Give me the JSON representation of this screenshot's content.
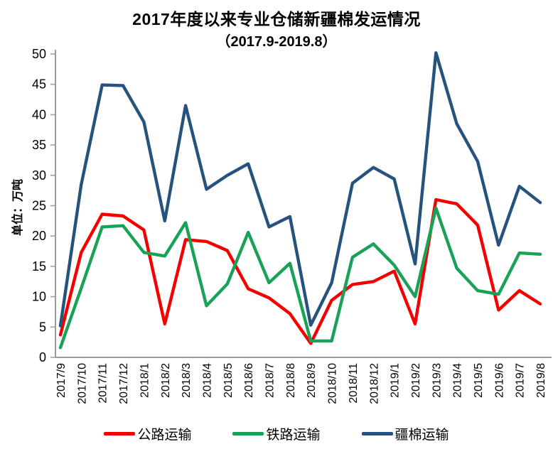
{
  "chart_data": {
    "type": "line",
    "title": "2017年度以来专业仓储新疆棉发运情况",
    "subtitle": "（2017.9-2019.8）",
    "ylabel": "单位：万吨",
    "ylim": [
      0,
      50
    ],
    "y_tick_labels": [
      "0",
      "5",
      "10",
      "15",
      "20",
      "25",
      "30",
      "35",
      "40",
      "45",
      "50"
    ],
    "grid": false,
    "legend_position": "bottom",
    "categories": [
      "2017/9",
      "2017/10",
      "2017/11",
      "2017/12",
      "2018/1",
      "2018/2",
      "2018/3",
      "2018/4",
      "2018/5",
      "2018/6",
      "2018/7",
      "2018/8",
      "2018/9",
      "2018/10",
      "2018/11",
      "2018/12",
      "2019/1",
      "2019/2",
      "2019/3",
      "2019/4",
      "2019/5",
      "2019/6",
      "2019/7",
      "2019/8"
    ],
    "series": [
      {
        "key": "road",
        "name": "公路运输",
        "color": "#F40000",
        "values": [
          3.7,
          17.3,
          23.6,
          23.3,
          21.0,
          5.5,
          19.4,
          19.1,
          17.6,
          11.3,
          9.8,
          7.2,
          2.3,
          9.4,
          12.0,
          12.5,
          14.2,
          5.5,
          26.0,
          25.3,
          21.8,
          7.8,
          11.0,
          8.8
        ]
      },
      {
        "key": "rail",
        "name": "铁路运输",
        "color": "#1AA158",
        "values": [
          1.6,
          11.4,
          21.5,
          21.7,
          17.3,
          16.7,
          22.2,
          8.5,
          12.1,
          20.6,
          12.3,
          15.5,
          2.7,
          2.7,
          16.5,
          18.7,
          15.2,
          10.0,
          24.6,
          14.7,
          11.0,
          10.4,
          17.2,
          17.0
        ]
      },
      {
        "key": "xinjiang",
        "name": "疆棉运输",
        "color": "#26527E",
        "values": [
          5.2,
          28.5,
          44.9,
          44.8,
          38.8,
          22.5,
          41.5,
          27.7,
          30.0,
          31.9,
          21.5,
          23.2,
          5.3,
          12.3,
          28.7,
          31.3,
          29.4,
          15.4,
          50.2,
          38.5,
          32.3,
          18.5,
          28.2,
          25.5
        ]
      }
    ],
    "axis_color": "#9B9B9B"
  }
}
